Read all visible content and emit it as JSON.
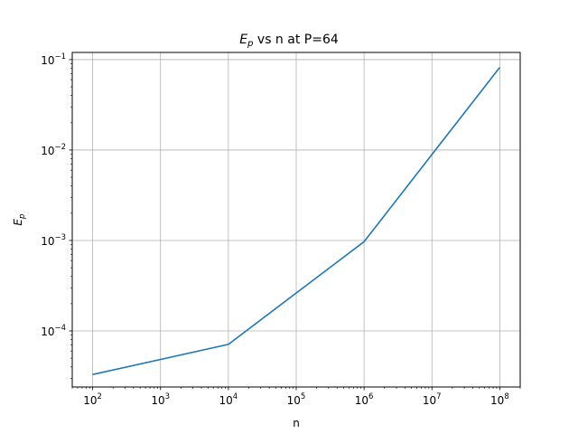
{
  "chart_data": {
    "type": "line",
    "title_parts": {
      "base": "E",
      "sub": "p",
      "rest": " vs n at P=64"
    },
    "xlabel": "n",
    "ylabel_parts": {
      "base": "E",
      "sub": "p"
    },
    "xscale": "log",
    "yscale": "log",
    "xlim": [
      50,
      200000000
    ],
    "ylim": [
      2.4e-05,
      0.12
    ],
    "grid": true,
    "x_ticks": [
      {
        "value": 100,
        "base": "10",
        "exp": "2"
      },
      {
        "value": 1000,
        "base": "10",
        "exp": "3"
      },
      {
        "value": 10000,
        "base": "10",
        "exp": "4"
      },
      {
        "value": 100000,
        "base": "10",
        "exp": "5"
      },
      {
        "value": 1000000,
        "base": "10",
        "exp": "6"
      },
      {
        "value": 10000000,
        "base": "10",
        "exp": "7"
      },
      {
        "value": 100000000,
        "base": "10",
        "exp": "8"
      }
    ],
    "y_ticks": [
      {
        "value": 0.0001,
        "base": "10",
        "exp": "−4"
      },
      {
        "value": 0.001,
        "base": "10",
        "exp": "−3"
      },
      {
        "value": 0.01,
        "base": "10",
        "exp": "−2"
      },
      {
        "value": 0.1,
        "base": "10",
        "exp": "−1"
      }
    ],
    "series": [
      {
        "color": "#1f77b4",
        "x": [
          100,
          10000,
          1000000,
          100000000
        ],
        "y": [
          3.3e-05,
          7.1e-05,
          0.00097,
          0.082
        ]
      }
    ]
  }
}
